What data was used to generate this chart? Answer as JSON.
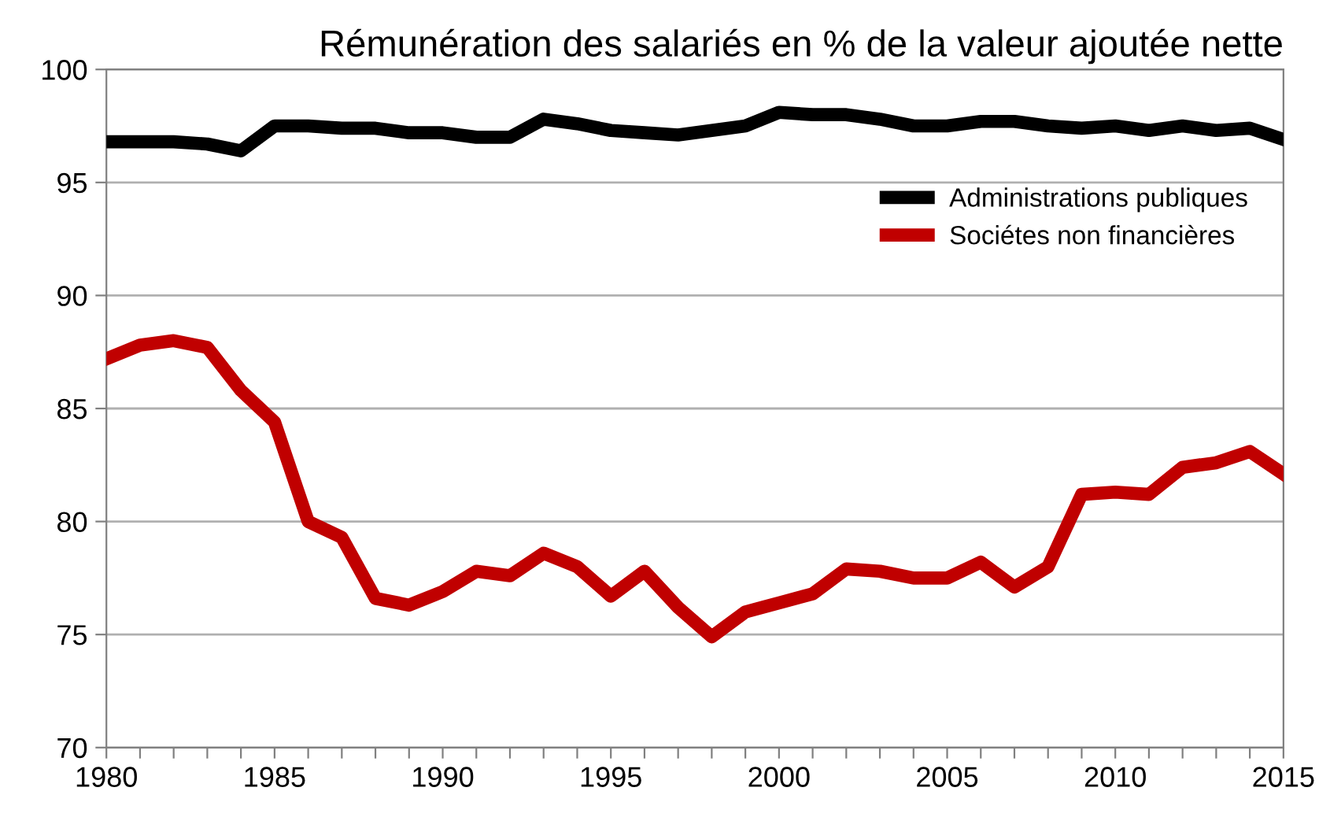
{
  "chart_data": {
    "type": "line",
    "title": "Rémunération des salariés en % de la valeur ajoutée nette",
    "x": [
      1980,
      1981,
      1982,
      1983,
      1984,
      1985,
      1986,
      1987,
      1988,
      1989,
      1990,
      1991,
      1992,
      1993,
      1994,
      1995,
      1996,
      1997,
      1998,
      1999,
      2000,
      2001,
      2002,
      2003,
      2004,
      2005,
      2006,
      2007,
      2008,
      2009,
      2010,
      2011,
      2012,
      2013,
      2014,
      2015
    ],
    "series": [
      {
        "name": "Administrations publiques",
        "color": "#000000",
        "values": [
          96.8,
          96.8,
          96.8,
          96.7,
          96.4,
          97.5,
          97.5,
          97.4,
          97.4,
          97.2,
          97.2,
          97.0,
          97.0,
          97.8,
          97.6,
          97.3,
          97.2,
          97.1,
          97.3,
          97.5,
          98.1,
          98.0,
          98.0,
          97.8,
          97.5,
          97.5,
          97.7,
          97.7,
          97.5,
          97.4,
          97.5,
          97.3,
          97.5,
          97.3,
          97.4,
          96.9
        ]
      },
      {
        "name": "Sociétes non financières",
        "color": "#c00000",
        "values": [
          87.2,
          87.8,
          88.0,
          87.7,
          85.8,
          84.4,
          80.0,
          79.3,
          76.6,
          76.3,
          76.9,
          77.8,
          77.6,
          78.6,
          78.0,
          76.7,
          77.8,
          76.2,
          74.9,
          76.0,
          76.4,
          76.8,
          77.9,
          77.8,
          77.5,
          77.5,
          78.2,
          77.1,
          78.0,
          81.2,
          81.3,
          81.2,
          82.4,
          82.6,
          83.1,
          82.1
        ]
      }
    ],
    "xlim": [
      1980,
      2015
    ],
    "xticks": [
      1980,
      {
        "value": 1981,
        "label": null
      },
      {
        "value": 1982,
        "label": null
      },
      {
        "value": 1983,
        "label": null
      },
      {
        "value": 1984,
        "label": null
      },
      1985,
      {
        "value": 1986,
        "label": null
      },
      {
        "value": 1987,
        "label": null
      },
      {
        "value": 1988,
        "label": null
      },
      {
        "value": 1989,
        "label": null
      },
      1990,
      {
        "value": 1991,
        "label": null
      },
      {
        "value": 1992,
        "label": null
      },
      {
        "value": 1993,
        "label": null
      },
      {
        "value": 1994,
        "label": null
      },
      1995,
      {
        "value": 1996,
        "label": null
      },
      {
        "value": 1997,
        "label": null
      },
      {
        "value": 1998,
        "label": null
      },
      {
        "value": 1999,
        "label": null
      },
      2000,
      {
        "value": 2001,
        "label": null
      },
      {
        "value": 2002,
        "label": null
      },
      {
        "value": 2003,
        "label": null
      },
      {
        "value": 2004,
        "label": null
      },
      2005,
      {
        "value": 2006,
        "label": null
      },
      {
        "value": 2007,
        "label": null
      },
      {
        "value": 2008,
        "label": null
      },
      {
        "value": 2009,
        "label": null
      },
      2010,
      {
        "value": 2011,
        "label": null
      },
      {
        "value": 2012,
        "label": null
      },
      {
        "value": 2013,
        "label": null
      },
      {
        "value": 2014,
        "label": null
      },
      2015
    ],
    "ylim": [
      70,
      100
    ],
    "yticks": [
      70,
      75,
      80,
      85,
      90,
      95,
      100
    ],
    "grid": "y",
    "legend": "right",
    "marker": "none",
    "line_style": "solid"
  }
}
